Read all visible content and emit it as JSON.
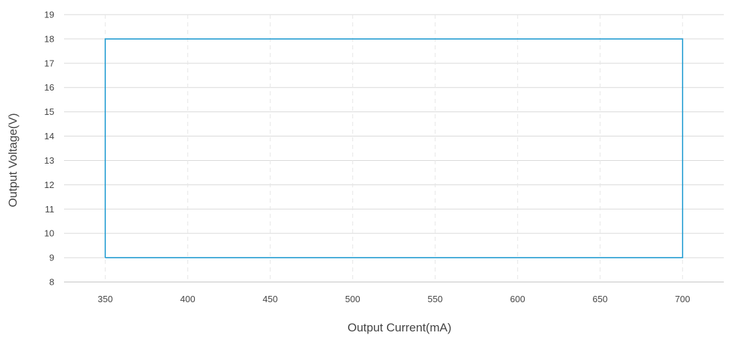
{
  "chart_data": {
    "type": "line",
    "title": "",
    "xlabel": "Output Current(mA)",
    "ylabel": "Output Voltage(V)",
    "xlim": [
      325,
      725
    ],
    "ylim": [
      8,
      19
    ],
    "x_ticks": [
      350,
      400,
      450,
      500,
      550,
      600,
      650,
      700
    ],
    "y_ticks": [
      8,
      9,
      10,
      11,
      12,
      13,
      14,
      15,
      16,
      17,
      18,
      19
    ],
    "grid": {
      "horizontal": true,
      "vertical_dashed": true
    },
    "legend": "none",
    "series": [
      {
        "color": "#1f9bd1",
        "points": [
          {
            "x": 350,
            "y": 9
          },
          {
            "x": 350,
            "y": 18
          },
          {
            "x": 700,
            "y": 18
          },
          {
            "x": 700,
            "y": 9
          },
          {
            "x": 350,
            "y": 9
          }
        ]
      }
    ]
  },
  "colors": {
    "grid": "#d9d9d9",
    "axis": "#bfbfbf",
    "text": "#444444"
  }
}
